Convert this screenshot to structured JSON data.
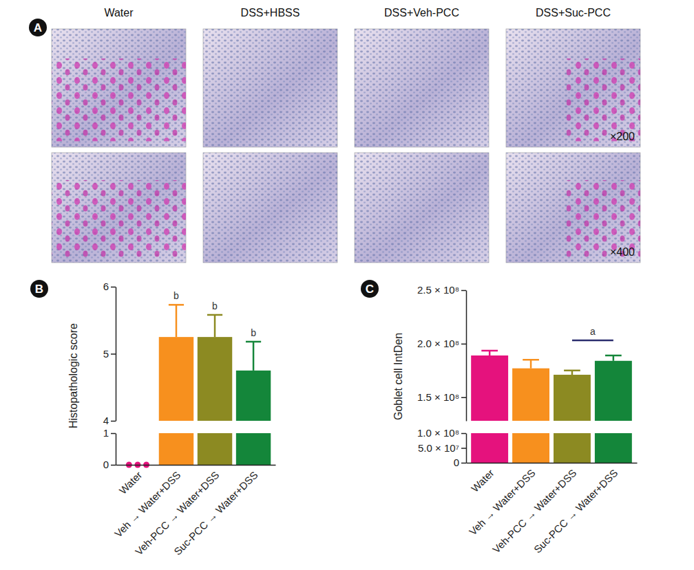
{
  "panel_a": {
    "label": "A",
    "columns": [
      "Water",
      "DSS+HBSS",
      "DSS+Veh-PCC",
      "DSS+Suc-PCC"
    ],
    "magnifications": [
      "×200",
      "×400"
    ]
  },
  "chart_data": [
    {
      "type": "bar",
      "panel_label": "B",
      "y_label": "Histopathologic score",
      "categories": [
        "Water",
        "Veh → Water+DSS",
        "Veh-PCC → Water+DSS",
        "Suc-PCC → Water+DSS"
      ],
      "values": [
        0,
        5.25,
        5.25,
        4.75
      ],
      "errors": [
        null,
        0.48,
        0.33,
        0.43
      ],
      "colors": [
        "#e5127d",
        "#f7901e",
        "#8c8a22",
        "#14863a"
      ],
      "points": {
        "category": "Water",
        "values": [
          0,
          0,
          0
        ]
      },
      "ylim": [
        0,
        6
      ],
      "y_break": [
        1,
        4
      ],
      "yticks": [
        0,
        1,
        4,
        5,
        6
      ],
      "annotations": [
        {
          "text": "b",
          "category": "Veh → Water+DSS"
        },
        {
          "text": "b",
          "category": "Veh-PCC → Water+DSS"
        },
        {
          "text": "b",
          "category": "Suc-PCC → Water+DSS"
        }
      ]
    },
    {
      "type": "bar",
      "panel_label": "C",
      "y_label": "Goblet cell IntDen",
      "categories": [
        "Water",
        "Veh → Water+DSS",
        "Veh-PCC → Water+DSS",
        "Suc-PCC → Water+DSS"
      ],
      "values": [
        189000000,
        177000000,
        171000000,
        184000000
      ],
      "errors": [
        4500000,
        8000000,
        4000000,
        5000000
      ],
      "colors": [
        "#e5127d",
        "#f7901e",
        "#8c8a22",
        "#14863a"
      ],
      "ylim": [
        0,
        250000000
      ],
      "y_break": [
        100000000,
        128000000
      ],
      "yticks": [
        0,
        {
          "value": 50000000,
          "label": "5.0 × 10⁷"
        },
        {
          "value": 100000000,
          "label": "1.0 × 10⁸"
        },
        {
          "value": 150000000,
          "label": "1.5 × 10⁸"
        },
        {
          "value": 200000000,
          "label": "2.0 × 10⁸"
        },
        {
          "value": 250000000,
          "label": "2.5 × 10⁸"
        }
      ],
      "annotations": [
        {
          "text": "a",
          "from": "Veh-PCC → Water+DSS",
          "to": "Suc-PCC → Water+DSS"
        }
      ]
    }
  ]
}
